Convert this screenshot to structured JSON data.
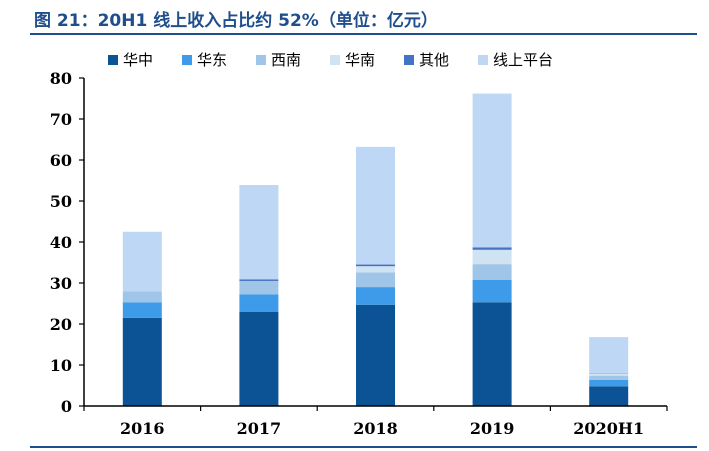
{
  "title": "图 21：20H1 线上收入占比约 52%（单位：亿元）",
  "chart_data": {
    "type": "bar",
    "stacked": true,
    "categories": [
      "2016",
      "2017",
      "2018",
      "2019",
      "2020H1"
    ],
    "series": [
      {
        "name": "华中",
        "color": "#0b5394",
        "values": [
          21.5,
          23.0,
          24.7,
          25.3,
          4.8
        ]
      },
      {
        "name": "华东",
        "color": "#3d9be9",
        "values": [
          3.8,
          4.2,
          4.3,
          5.5,
          1.6
        ]
      },
      {
        "name": "西南",
        "color": "#9fc5e8",
        "values": [
          2.7,
          3.3,
          3.6,
          3.8,
          1.0
        ]
      },
      {
        "name": "华南",
        "color": "#d0e3f2",
        "values": [
          0.0,
          0.0,
          1.5,
          3.5,
          0.5
        ]
      },
      {
        "name": "其他",
        "color": "#4472c4",
        "values": [
          0.0,
          0.4,
          0.4,
          0.6,
          0.1
        ]
      },
      {
        "name": "线上平台",
        "color": "#bdd7f4",
        "values": [
          14.5,
          23.0,
          28.7,
          37.5,
          8.8
        ]
      }
    ],
    "ylim": [
      0,
      80
    ],
    "yticks": [
      0,
      10,
      20,
      30,
      40,
      50,
      60,
      70,
      80
    ],
    "legend_position": "top",
    "grid": false
  }
}
